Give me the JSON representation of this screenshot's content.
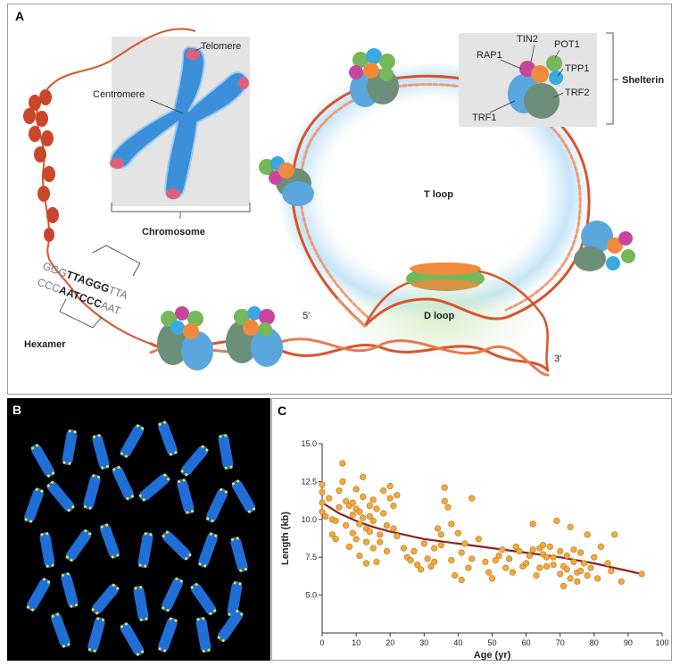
{
  "panel_a": {
    "panel_label": "A",
    "labels": {
      "telomere": "Telomere",
      "centromere": "Centromere",
      "chromosome": "Chromosome",
      "tin2": "TIN2",
      "pot1": "POT1",
      "rap1": "RAP1",
      "tpp1": "TPP1",
      "trf2": "TRF2",
      "trf1": "TRF1",
      "shelterin": "Shelterin",
      "t_loop": "T loop",
      "d_loop": "D loop",
      "five_prime": "5′",
      "three_prime": "3′",
      "hexamer": "Hexamer",
      "seq_top_pre": "GGG",
      "seq_top_bold": "TTAGGG",
      "seq_top_post": "TTA",
      "seq_bot_pre": "CCC",
      "seq_bot_bold": "AATCCC",
      "seq_bot_post": "AAT"
    },
    "colors": {
      "dna": "#d9532b",
      "chromosome": "#3a8fd8",
      "telomere": "#e0607a",
      "box": "#e4e4e4"
    }
  },
  "panel_b": {
    "panel_label": "B",
    "colors": {
      "background": "#000000",
      "chromosome": "#1f6fd6",
      "telomere_signal": "#e8e23a"
    }
  },
  "panel_c": {
    "panel_label": "C",
    "chart_data": {
      "type": "scatter",
      "xlabel": "Age (yr)",
      "ylabel": "Length (kb)",
      "xlim": [
        0,
        100
      ],
      "ylim": [
        2.5,
        15
      ],
      "xticks": [
        0,
        10,
        20,
        30,
        40,
        50,
        60,
        70,
        80,
        90,
        100
      ],
      "yticks": [
        5.0,
        7.5,
        10.0,
        12.5,
        15.0
      ],
      "ytick_labels": [
        "5.0",
        "7.5",
        "10.0",
        "12.5",
        "15.0"
      ],
      "point_color": "#f2a93b",
      "trend_color": "#8b2323",
      "trend": [
        [
          0,
          11.1
        ],
        [
          5,
          10.4
        ],
        [
          10,
          9.9
        ],
        [
          15,
          9.5
        ],
        [
          20,
          9.2
        ],
        [
          30,
          8.7
        ],
        [
          40,
          8.4
        ],
        [
          50,
          8.1
        ],
        [
          60,
          7.8
        ],
        [
          70,
          7.5
        ],
        [
          80,
          7.1
        ],
        [
          90,
          6.6
        ],
        [
          94,
          6.4
        ]
      ],
      "points": [
        [
          0,
          11.8
        ],
        [
          0,
          11.1
        ],
        [
          0,
          10.5
        ],
        [
          0,
          12.3
        ],
        [
          1,
          10.2
        ],
        [
          2,
          11.4
        ],
        [
          3,
          10.0
        ],
        [
          3,
          9.0
        ],
        [
          4,
          8.7
        ],
        [
          4,
          9.9
        ],
        [
          5,
          10.8
        ],
        [
          5,
          11.9
        ],
        [
          6,
          13.7
        ],
        [
          6,
          12.5
        ],
        [
          7,
          11.2
        ],
        [
          7,
          9.6
        ],
        [
          8,
          10.9
        ],
        [
          8,
          8.2
        ],
        [
          9,
          11.1
        ],
        [
          9,
          10.3
        ],
        [
          9,
          9.1
        ],
        [
          10,
          12.0
        ],
        [
          10,
          10.7
        ],
        [
          10,
          8.7
        ],
        [
          11,
          10.5
        ],
        [
          11,
          9.7
        ],
        [
          11,
          7.6
        ],
        [
          12,
          11.5
        ],
        [
          12,
          12.8
        ],
        [
          12,
          10.1
        ],
        [
          13,
          9.4
        ],
        [
          13,
          8.5
        ],
        [
          13,
          7.1
        ],
        [
          14,
          10.9
        ],
        [
          14,
          10.2
        ],
        [
          14,
          9.2
        ],
        [
          15,
          8.1
        ],
        [
          15,
          11.3
        ],
        [
          15,
          9.9
        ],
        [
          16,
          10.7
        ],
        [
          16,
          7.2
        ],
        [
          17,
          9.0
        ],
        [
          17,
          8.5
        ],
        [
          18,
          10.4
        ],
        [
          18,
          11.9
        ],
        [
          19,
          9.6
        ],
        [
          19,
          7.9
        ],
        [
          20,
          12.2
        ],
        [
          20,
          11.4
        ],
        [
          21,
          10.9
        ],
        [
          21,
          9.4
        ],
        [
          22,
          8.9
        ],
        [
          22,
          11.6
        ],
        [
          24,
          8.1
        ],
        [
          25,
          7.5
        ],
        [
          26,
          7.3
        ],
        [
          27,
          7.9
        ],
        [
          28,
          7.0
        ],
        [
          29,
          6.7
        ],
        [
          30,
          8.4
        ],
        [
          31,
          7.4
        ],
        [
          32,
          6.9
        ],
        [
          33,
          8.1
        ],
        [
          33,
          7.2
        ],
        [
          34,
          9.4
        ],
        [
          35,
          9.0
        ],
        [
          35,
          8.3
        ],
        [
          36,
          12.1
        ],
        [
          36,
          11.2
        ],
        [
          37,
          10.8
        ],
        [
          38,
          9.7
        ],
        [
          38,
          7.3
        ],
        [
          39,
          6.3
        ],
        [
          40,
          9.1
        ],
        [
          41,
          7.8
        ],
        [
          41,
          6.0
        ],
        [
          42,
          8.4
        ],
        [
          43,
          6.8
        ],
        [
          44,
          11.4
        ],
        [
          44,
          7.4
        ],
        [
          46,
          8.7
        ],
        [
          48,
          7.2
        ],
        [
          49,
          6.5
        ],
        [
          50,
          6.1
        ],
        [
          51,
          7.3
        ],
        [
          52,
          7.6
        ],
        [
          53,
          8.0
        ],
        [
          54,
          6.8
        ],
        [
          55,
          7.4
        ],
        [
          56,
          6.5
        ],
        [
          57,
          8.2
        ],
        [
          58,
          7.9
        ],
        [
          59,
          6.9
        ],
        [
          60,
          7.1
        ],
        [
          61,
          7.6
        ],
        [
          62,
          8.0
        ],
        [
          62,
          9.7
        ],
        [
          63,
          6.3
        ],
        [
          64,
          8.1
        ],
        [
          64,
          6.8
        ],
        [
          65,
          7.7
        ],
        [
          65,
          8.3
        ],
        [
          66,
          7.5
        ],
        [
          66,
          6.9
        ],
        [
          67,
          8.2
        ],
        [
          68,
          7.5
        ],
        [
          68,
          7.0
        ],
        [
          69,
          9.9
        ],
        [
          70,
          6.4
        ],
        [
          70,
          7.9
        ],
        [
          71,
          6.9
        ],
        [
          71,
          5.6
        ],
        [
          72,
          7.6
        ],
        [
          72,
          6.7
        ],
        [
          73,
          9.5
        ],
        [
          73,
          6.1
        ],
        [
          74,
          7.2
        ],
        [
          74,
          8.0
        ],
        [
          75,
          6.5
        ],
        [
          75,
          5.9
        ],
        [
          76,
          7.8
        ],
        [
          76,
          6.6
        ],
        [
          77,
          7.1
        ],
        [
          78,
          6.3
        ],
        [
          78,
          9.0
        ],
        [
          79,
          6.8
        ],
        [
          80,
          7.5
        ],
        [
          81,
          6.1
        ],
        [
          82,
          8.2
        ],
        [
          84,
          7.1
        ],
        [
          85,
          6.6
        ],
        [
          86,
          9.0
        ],
        [
          88,
          5.9
        ],
        [
          94,
          6.4
        ]
      ]
    }
  }
}
